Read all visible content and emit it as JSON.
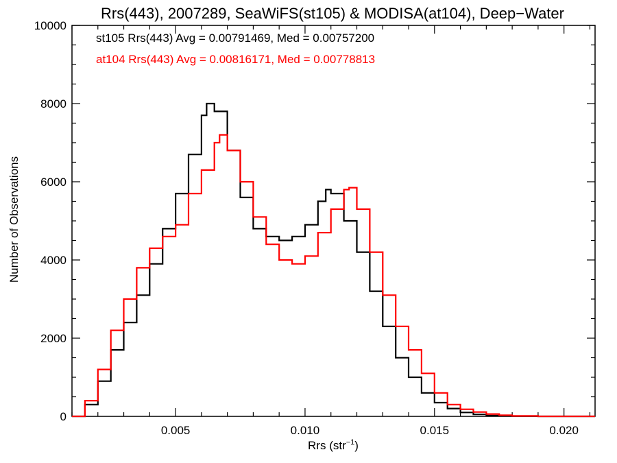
{
  "chart_data": {
    "type": "line",
    "title": "Rrs(443), 2007289, SeaWiFS(st105) & MODISA(at104), Deep−Water",
    "xlabel": "Rrs (str",
    "xlabel_sup": "−1",
    "xlabel_end": ")",
    "ylabel": "Number of Observations",
    "xlim": [
      0.001,
      0.0212
    ],
    "ylim": [
      0,
      10000
    ],
    "x_ticks": [
      0.005,
      0.01,
      0.015,
      0.02
    ],
    "x_tick_labels": [
      "0.005",
      "0.010",
      "0.015",
      "0.020"
    ],
    "y_ticks": [
      0,
      2000,
      4000,
      6000,
      8000,
      10000
    ],
    "y_tick_labels": [
      "0",
      "2000",
      "4000",
      "6000",
      "8000",
      "10000"
    ],
    "grid": false,
    "legend_position": "top-left",
    "annotations": [
      "st105 Rrs(443) Avg = 0.00791469, Med = 0.00757200",
      "at104 Rrs(443) Avg = 0.00816171, Med = 0.00778813"
    ],
    "series": [
      {
        "color": "#000000",
        "x": [
          0.001,
          0.0015,
          0.002,
          0.0025,
          0.003,
          0.0035,
          0.004,
          0.0045,
          0.005,
          0.0055,
          0.006,
          0.0062,
          0.0065,
          0.007,
          0.0075,
          0.008,
          0.0085,
          0.009,
          0.0095,
          0.01,
          0.0105,
          0.0108,
          0.011,
          0.0115,
          0.012,
          0.0125,
          0.013,
          0.0135,
          0.014,
          0.0145,
          0.015,
          0.0155,
          0.016,
          0.0165,
          0.017,
          0.0175,
          0.018,
          0.019,
          0.02,
          0.0212
        ],
        "y": [
          0,
          300,
          900,
          1700,
          2400,
          3100,
          3900,
          4800,
          5700,
          6700,
          7700,
          8000,
          7800,
          6800,
          5600,
          4800,
          4600,
          4500,
          4600,
          4900,
          5500,
          5800,
          5700,
          5000,
          4200,
          3200,
          2300,
          1500,
          1000,
          600,
          350,
          200,
          100,
          50,
          20,
          10,
          5,
          0,
          0,
          0
        ]
      },
      {
        "color": "#ff0000",
        "x": [
          0.001,
          0.0015,
          0.002,
          0.0025,
          0.003,
          0.0035,
          0.004,
          0.0045,
          0.005,
          0.0055,
          0.006,
          0.0065,
          0.0067,
          0.007,
          0.0075,
          0.008,
          0.0085,
          0.009,
          0.0095,
          0.01,
          0.0105,
          0.011,
          0.0115,
          0.0117,
          0.012,
          0.0125,
          0.013,
          0.0135,
          0.014,
          0.0145,
          0.015,
          0.0155,
          0.016,
          0.0165,
          0.017,
          0.0175,
          0.018,
          0.019,
          0.02,
          0.0212
        ],
        "y": [
          0,
          400,
          1200,
          2200,
          3000,
          3800,
          4300,
          4600,
          4900,
          5700,
          6300,
          7000,
          7200,
          6800,
          6000,
          5100,
          4400,
          4000,
          3900,
          4100,
          4700,
          5300,
          5800,
          5850,
          5300,
          4200,
          3100,
          2300,
          1700,
          1100,
          600,
          300,
          180,
          110,
          60,
          30,
          10,
          0,
          0,
          0
        ]
      }
    ]
  }
}
